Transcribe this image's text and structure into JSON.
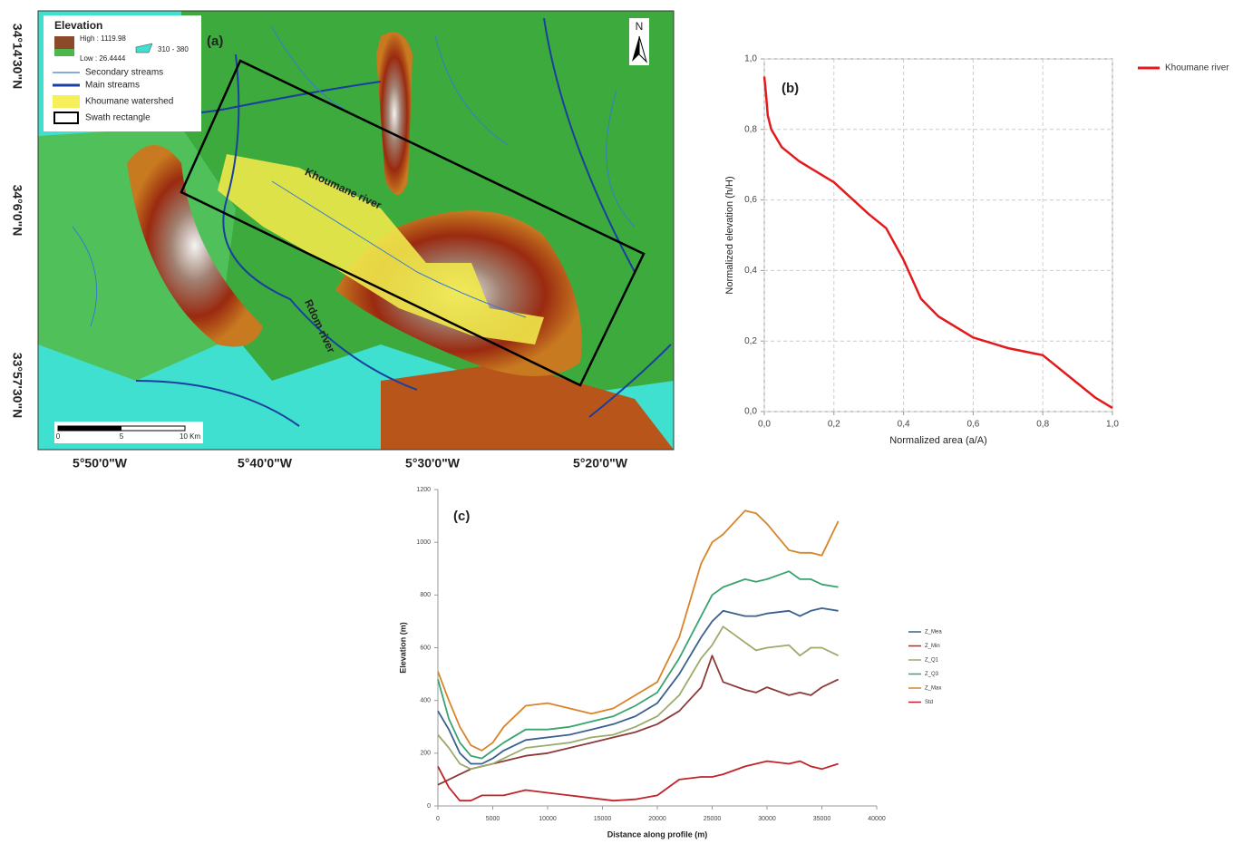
{
  "map": {
    "panel_label": "(a)",
    "legend": {
      "title": "Elevation",
      "high": "High : 1119.98",
      "low": "Low : 26.4444",
      "range": "310 - 380",
      "secondary_streams": "Secondary streams",
      "main_streams": "Main streams",
      "watershed": "Khoumane watershed",
      "swath": "Swath rectangle"
    },
    "north": "N",
    "river_labels": [
      "Khoumane river",
      "Rdom river"
    ],
    "scale_bar": [
      "0",
      "5",
      "10 Km"
    ],
    "lat_labels": [
      "34°14'30\"N",
      "34°6'0\"N",
      "33°57'30\"N"
    ],
    "lon_labels": [
      "5°50'0\"W",
      "5°40'0\"W",
      "5°30'0\"W",
      "5°20'0\"W"
    ]
  },
  "chart_data": [
    {
      "type": "line",
      "panel_label": "(b)",
      "x_label": "Normalized area (a/A)",
      "y_label": "Normalized elevation (h/H)",
      "x": [
        0,
        0.005,
        0.01,
        0.02,
        0.05,
        0.1,
        0.2,
        0.3,
        0.35,
        0.4,
        0.45,
        0.5,
        0.6,
        0.7,
        0.8,
        0.9,
        0.95,
        1.0
      ],
      "series": [
        {
          "name": "Khoumane river",
          "color": "#e31a1c",
          "values": [
            0.95,
            0.9,
            0.84,
            0.8,
            0.75,
            0.71,
            0.65,
            0.56,
            0.52,
            0.43,
            0.32,
            0.27,
            0.21,
            0.18,
            0.16,
            0.08,
            0.04,
            0.01
          ]
        }
      ],
      "xlim": [
        0,
        1
      ],
      "ylim": [
        0,
        1
      ],
      "xticks": [
        {
          "value": 0,
          "label": "0,0"
        },
        {
          "value": 0.2,
          "label": "0,2"
        },
        {
          "value": 0.4,
          "label": "0,4"
        },
        {
          "value": 0.6,
          "label": "0,6"
        },
        {
          "value": 0.8,
          "label": "0,8"
        },
        {
          "value": 1,
          "label": "1,0"
        }
      ],
      "yticks": [
        {
          "value": 0,
          "label": "0,0"
        },
        {
          "value": 0.2,
          "label": "0,2"
        },
        {
          "value": 0.4,
          "label": "0,4"
        },
        {
          "value": 0.6,
          "label": "0,6"
        },
        {
          "value": 0.8,
          "label": "0,8"
        },
        {
          "value": 1,
          "label": "1,0"
        }
      ],
      "grid": true
    },
    {
      "type": "line",
      "panel_label": "(c)",
      "x_label": "Distance along profile (m)",
      "y_label": "Elevation (m)",
      "x": [
        0,
        1000,
        2000,
        3000,
        4000,
        5000,
        6000,
        8000,
        10000,
        12000,
        14000,
        16000,
        18000,
        20000,
        22000,
        24000,
        25000,
        26000,
        28000,
        29000,
        30000,
        32000,
        33000,
        34000,
        35000,
        36500
      ],
      "series": [
        {
          "name": "Z_Mea",
          "color": "#3b5f8f",
          "values": [
            360,
            290,
            200,
            160,
            160,
            180,
            210,
            250,
            260,
            270,
            290,
            310,
            340,
            390,
            500,
            640,
            700,
            740,
            720,
            720,
            730,
            740,
            720,
            740,
            750,
            740
          ]
        },
        {
          "name": "Z_Min",
          "color": "#8b3a3a",
          "values": [
            80,
            100,
            120,
            140,
            150,
            160,
            170,
            190,
            200,
            220,
            240,
            260,
            280,
            310,
            360,
            450,
            570,
            470,
            440,
            430,
            450,
            420,
            430,
            420,
            450,
            480
          ]
        },
        {
          "name": "Z_Q1",
          "color": "#9bab6a",
          "values": [
            270,
            220,
            160,
            140,
            150,
            160,
            180,
            220,
            230,
            240,
            260,
            270,
            300,
            340,
            420,
            560,
            610,
            680,
            620,
            590,
            600,
            610,
            570,
            600,
            600,
            570
          ]
        },
        {
          "name": "Z_Q3",
          "color": "#3aa370",
          "values": [
            480,
            330,
            240,
            190,
            180,
            210,
            240,
            290,
            290,
            300,
            320,
            340,
            380,
            430,
            560,
            720,
            800,
            830,
            860,
            850,
            860,
            890,
            860,
            860,
            840,
            830
          ]
        },
        {
          "name": "Z_Max",
          "color": "#d8842a",
          "values": [
            510,
            400,
            300,
            230,
            210,
            240,
            300,
            380,
            390,
            370,
            350,
            370,
            420,
            470,
            640,
            920,
            1000,
            1030,
            1120,
            1110,
            1070,
            970,
            960,
            960,
            950,
            1080
          ]
        },
        {
          "name": "Std",
          "color": "#c0242a",
          "values": [
            150,
            70,
            20,
            20,
            40,
            40,
            40,
            60,
            50,
            40,
            30,
            20,
            25,
            40,
            100,
            110,
            110,
            120,
            150,
            160,
            170,
            160,
            170,
            150,
            140,
            160
          ]
        }
      ],
      "xlim": [
        0,
        40000
      ],
      "ylim": [
        0,
        1200
      ],
      "xticks": [
        0,
        5000,
        10000,
        15000,
        20000,
        25000,
        30000,
        35000,
        40000
      ],
      "yticks": [
        0,
        200,
        400,
        600,
        800,
        1000,
        1200
      ],
      "grid": false
    }
  ]
}
